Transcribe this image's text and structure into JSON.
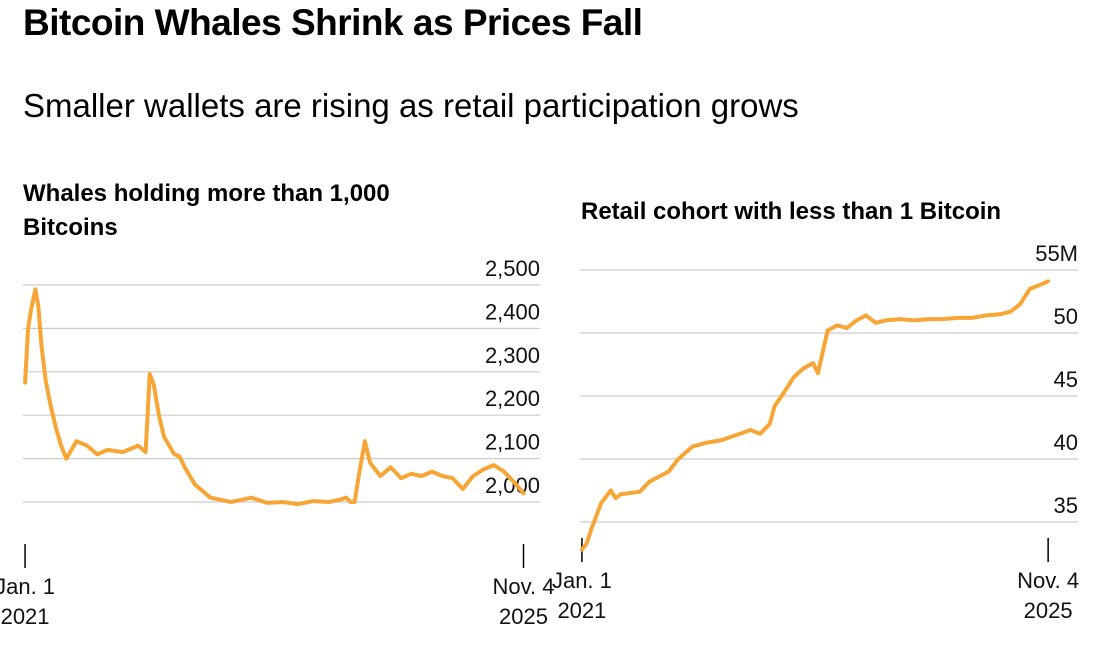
{
  "title": "Bitcoin Whales Shrink as Prices Fall",
  "subtitle": "Smaller wallets are rising as retail participation grows",
  "colors": {
    "line": "#F7A535",
    "grid": "#CCCCCC",
    "axis": "#000000"
  },
  "chart_data": [
    {
      "type": "line",
      "title": "Whales holding more than 1,000 Bitcoins",
      "x_ticks": [
        {
          "label": [
            "Jan. 1",
            "2021"
          ],
          "x": 2021.0
        },
        {
          "label": [
            "Nov. 4",
            "2025"
          ],
          "x": 2025.84
        }
      ],
      "ylim": [
        1950,
        2500
      ],
      "y_ticks": [
        {
          "value": 2500,
          "label": "2,500"
        },
        {
          "value": 2400,
          "label": "2,400"
        },
        {
          "value": 2300,
          "label": "2,300"
        },
        {
          "value": 2200,
          "label": "2,200"
        },
        {
          "value": 2100,
          "label": "2,100"
        },
        {
          "value": 2000,
          "label": "2,000"
        }
      ],
      "grid": true,
      "xlim": [
        2020.98,
        2026.0
      ],
      "series": [
        {
          "x": [
            2021.0,
            2021.03,
            2021.06,
            2021.1,
            2021.13,
            2021.16,
            2021.2,
            2021.25,
            2021.3,
            2021.35,
            2021.4,
            2021.5,
            2021.6,
            2021.7,
            2021.8,
            2021.95,
            2022.1,
            2022.17,
            2022.19,
            2022.21,
            2022.25,
            2022.3,
            2022.35,
            2022.4,
            2022.45,
            2022.5,
            2022.55,
            2022.65,
            2022.8,
            2022.9,
            2023.0,
            2023.1,
            2023.2,
            2023.35,
            2023.5,
            2023.65,
            2023.8,
            2023.95,
            2024.05,
            2024.12,
            2024.16,
            2024.2,
            2024.24,
            2024.3,
            2024.35,
            2024.45,
            2024.55,
            2024.65,
            2024.75,
            2024.85,
            2024.95,
            2025.05,
            2025.15,
            2025.25,
            2025.35,
            2025.45,
            2025.55,
            2025.65,
            2025.75,
            2025.84
          ],
          "y": [
            2275,
            2400,
            2445,
            2490,
            2450,
            2360,
            2280,
            2220,
            2170,
            2130,
            2100,
            2140,
            2130,
            2110,
            2120,
            2115,
            2130,
            2115,
            2200,
            2295,
            2270,
            2200,
            2150,
            2130,
            2110,
            2105,
            2080,
            2040,
            2010,
            2005,
            2000,
            2005,
            2010,
            1998,
            2000,
            1995,
            2002,
            2000,
            2005,
            2010,
            2000,
            2000,
            2060,
            2140,
            2090,
            2060,
            2080,
            2055,
            2065,
            2060,
            2070,
            2060,
            2055,
            2030,
            2060,
            2075,
            2085,
            2070,
            2045,
            2020
          ]
        }
      ]
    },
    {
      "type": "line",
      "title": "Retail cohort with less than 1 Bitcoin",
      "x_ticks": [
        {
          "label": [
            "Jan. 1",
            "2021"
          ],
          "x": 2021.0
        },
        {
          "label": [
            "Nov. 4",
            "2025"
          ],
          "x": 2025.84
        }
      ],
      "ylim": [
        32.5,
        55
      ],
      "y_ticks": [
        {
          "value": 55,
          "label": "55M"
        },
        {
          "value": 50,
          "label": "50"
        },
        {
          "value": 45,
          "label": "45"
        },
        {
          "value": 40,
          "label": "40"
        },
        {
          "value": 35,
          "label": "35"
        }
      ],
      "grid": true,
      "xlim": [
        2020.98,
        2026.15
      ],
      "series": [
        {
          "x": [
            2021.0,
            2021.05,
            2021.1,
            2021.2,
            2021.3,
            2021.35,
            2021.4,
            2021.5,
            2021.6,
            2021.7,
            2021.8,
            2021.9,
            2022.0,
            2022.15,
            2022.3,
            2022.45,
            2022.6,
            2022.75,
            2022.85,
            2022.95,
            2023.0,
            2023.1,
            2023.2,
            2023.3,
            2023.4,
            2023.45,
            2023.55,
            2023.65,
            2023.75,
            2023.85,
            2023.95,
            2024.05,
            2024.15,
            2024.3,
            2024.45,
            2024.6,
            2024.75,
            2024.9,
            2025.05,
            2025.2,
            2025.35,
            2025.45,
            2025.55,
            2025.65,
            2025.75,
            2025.84
          ],
          "y": [
            32.8,
            33.3,
            34.5,
            36.5,
            37.5,
            36.9,
            37.2,
            37.3,
            37.4,
            38.2,
            38.6,
            39.0,
            40.0,
            41.0,
            41.3,
            41.5,
            41.9,
            42.3,
            42.0,
            42.8,
            44.2,
            45.3,
            46.5,
            47.2,
            47.6,
            46.8,
            50.2,
            50.6,
            50.4,
            51.0,
            51.4,
            50.8,
            51.0,
            51.1,
            51.0,
            51.1,
            51.1,
            51.2,
            51.2,
            51.4,
            51.5,
            51.7,
            52.3,
            53.5,
            53.8,
            54.1
          ]
        }
      ]
    }
  ]
}
